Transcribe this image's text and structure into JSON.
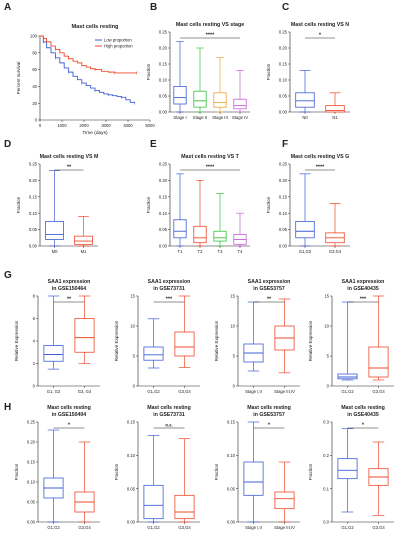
{
  "colors": {
    "blue": "#3f5fd6",
    "red": "#ef4a2c",
    "green": "#36c23a",
    "orange": "#f4a23a",
    "purple": "#c85fd8",
    "axis": "#222222"
  },
  "chart_data": [
    {
      "id": "A",
      "type": "line",
      "panel_label": "A",
      "title": "Mast cells resting",
      "xlabel": "Time (days)",
      "ylabel": "Percent survival",
      "xlim": [
        0,
        5000
      ],
      "ylim": [
        0,
        100
      ],
      "xticks": [
        "0",
        "1000",
        "2000",
        "3000",
        "4000",
        "5000"
      ],
      "yticks": [
        "0",
        "20",
        "40",
        "60",
        "80",
        "100"
      ],
      "legend_position": "top-right",
      "series": [
        {
          "name": "Low proportion",
          "color": "#3f5fd6",
          "x": [
            0,
            150,
            300,
            500,
            700,
            900,
            1100,
            1300,
            1500,
            1700,
            1900,
            2100,
            2300,
            2500,
            2700,
            2900,
            3100,
            3300,
            3500,
            3700,
            3900,
            4100,
            4300
          ],
          "y": [
            100,
            93,
            86,
            80,
            74,
            68,
            62,
            57,
            52,
            48,
            44,
            41,
            38,
            35,
            33,
            31,
            30,
            29,
            28,
            27,
            24,
            21,
            20
          ]
        },
        {
          "name": "High proportion",
          "color": "#ef4a2c",
          "x": [
            0,
            150,
            300,
            500,
            700,
            900,
            1100,
            1300,
            1500,
            1700,
            1900,
            2100,
            2300,
            2500,
            2800,
            3100,
            3400,
            3700,
            4000,
            4400
          ],
          "y": [
            100,
            97,
            93,
            88,
            84,
            80,
            76,
            73,
            70,
            68,
            65,
            63,
            61,
            60,
            58,
            57,
            56,
            56,
            56,
            56
          ]
        }
      ]
    },
    {
      "id": "B",
      "type": "box",
      "panel_label": "B",
      "title": "Mast cells resting VS stage",
      "ylabel": "Fraction",
      "ylim": [
        0,
        0.25
      ],
      "yticks": [
        "0.00",
        "0.05",
        "0.10",
        "0.15",
        "0.20",
        "0.25"
      ],
      "categories": [
        "Stage I",
        "Stage II",
        "Stage III",
        "Stage IV"
      ],
      "colors": [
        "#3f5fd6",
        "#36c23a",
        "#f4a23a",
        "#c85fd8"
      ],
      "boxes": [
        [
          0,
          0.025,
          0.045,
          0.08,
          0.22
        ],
        [
          0,
          0.015,
          0.035,
          0.065,
          0.2
        ],
        [
          0,
          0.015,
          0.03,
          0.06,
          0.17
        ],
        [
          0,
          0.01,
          0.02,
          0.04,
          0.13
        ]
      ],
      "significance": [
        {
          "from": 0,
          "to": 3,
          "label": "****"
        }
      ]
    },
    {
      "id": "C",
      "type": "box",
      "panel_label": "C",
      "title": "Mast cells resting VS N",
      "ylabel": "Fraction",
      "ylim": [
        0,
        0.25
      ],
      "yticks": [
        "0.00",
        "0.05",
        "0.10",
        "0.15",
        "0.20",
        "0.25"
      ],
      "categories": [
        "N0",
        "N1"
      ],
      "colors": [
        "#3f5fd6",
        "#ef4a2c"
      ],
      "boxes": [
        [
          0,
          0.015,
          0.035,
          0.06,
          0.13
        ],
        [
          0,
          0,
          0.005,
          0.02,
          0.06
        ]
      ],
      "significance": [
        {
          "from": 0,
          "to": 1,
          "label": "*"
        }
      ]
    },
    {
      "id": "D",
      "type": "box",
      "panel_label": "D",
      "title": "Mast cells resting VS M",
      "ylabel": "Fraction",
      "ylim": [
        0,
        0.25
      ],
      "yticks": [
        "0.00",
        "0.05",
        "0.10",
        "0.15",
        "0.20",
        "0.25"
      ],
      "categories": [
        "M0",
        "M1"
      ],
      "colors": [
        "#3f5fd6",
        "#ef4a2c"
      ],
      "boxes": [
        [
          0,
          0.02,
          0.035,
          0.075,
          0.23
        ],
        [
          0,
          0.005,
          0.015,
          0.03,
          0.09
        ]
      ],
      "significance": [
        {
          "from": 0,
          "to": 1,
          "label": "**"
        }
      ]
    },
    {
      "id": "E",
      "type": "box",
      "panel_label": "E",
      "title": "Mast cells resting VS T",
      "ylabel": "Fraction",
      "ylim": [
        0,
        0.25
      ],
      "yticks": [
        "0.00",
        "0.05",
        "0.10",
        "0.15",
        "0.20",
        "0.25"
      ],
      "categories": [
        "T1",
        "T2",
        "T3",
        "T4"
      ],
      "colors": [
        "#3f5fd6",
        "#ef4a2c",
        "#36c23a",
        "#c85fd8"
      ],
      "boxes": [
        [
          0,
          0.025,
          0.045,
          0.08,
          0.22
        ],
        [
          0,
          0.01,
          0.025,
          0.06,
          0.2
        ],
        [
          0,
          0.015,
          0.025,
          0.045,
          0.16
        ],
        [
          0,
          0.005,
          0.02,
          0.035,
          0.1
        ]
      ],
      "significance": [
        {
          "from": 0,
          "to": 3,
          "label": "****"
        }
      ]
    },
    {
      "id": "F",
      "type": "box",
      "panel_label": "F",
      "title": "Mast cells resting VS G",
      "ylabel": "Fraction",
      "ylim": [
        0,
        0.25
      ],
      "yticks": [
        "0.00",
        "0.05",
        "0.10",
        "0.15",
        "0.20",
        "0.25"
      ],
      "categories": [
        "G1,G2",
        "G3,G4"
      ],
      "colors": [
        "#3f5fd6",
        "#ef4a2c"
      ],
      "boxes": [
        [
          0,
          0.025,
          0.045,
          0.075,
          0.22
        ],
        [
          0,
          0.01,
          0.025,
          0.04,
          0.13
        ]
      ],
      "significance": [
        {
          "from": 0,
          "to": 1,
          "label": "****"
        }
      ]
    },
    {
      "id": "G1",
      "type": "box",
      "panel_label": "G",
      "title": [
        "SAA1 expression",
        "in GSE150464"
      ],
      "ylabel": "Relative Expression",
      "ylim": [
        0,
        8
      ],
      "yticks": [
        "0",
        "2",
        "4",
        "6",
        "8"
      ],
      "categories": [
        "G1, G2",
        "G3, G4"
      ],
      "colors": [
        "#3f5fd6",
        "#ef4a2c"
      ],
      "boxes": [
        [
          1.5,
          2.2,
          2.8,
          3.6,
          8.0
        ],
        [
          2.0,
          3.0,
          4.3,
          6.0,
          8.0
        ]
      ],
      "significance": [
        {
          "from": 0,
          "to": 1,
          "label": "**"
        }
      ]
    },
    {
      "id": "G2",
      "type": "box",
      "panel_label": "",
      "title": [
        "SAA1 expression",
        "in GSE73731"
      ],
      "ylabel": "Relative Expression",
      "ylim": [
        0,
        15
      ],
      "yticks": [
        "0",
        "5",
        "10",
        "15"
      ],
      "categories": [
        "G1,G2",
        "G3,G4"
      ],
      "colors": [
        "#3f5fd6",
        "#ef4a2c"
      ],
      "boxes": [
        [
          3.0,
          4.3,
          5.2,
          6.5,
          11.2
        ],
        [
          3.1,
          5.0,
          6.5,
          9.0,
          15.0
        ]
      ],
      "significance": [
        {
          "from": 0,
          "to": 1,
          "label": "***"
        }
      ]
    },
    {
      "id": "G3",
      "type": "box",
      "panel_label": "",
      "title": [
        "SAA1 expression",
        "in GSE53757"
      ],
      "ylabel": "Relative Expression",
      "ylim": [
        0,
        15
      ],
      "yticks": [
        "0",
        "5",
        "10",
        "15"
      ],
      "categories": [
        "Stage I,II",
        "Stage III,IV"
      ],
      "colors": [
        "#3f5fd6",
        "#ef4a2c"
      ],
      "boxes": [
        [
          2.5,
          4.0,
          5.5,
          7.0,
          14.0
        ],
        [
          2.2,
          6.0,
          8.0,
          10.0,
          14.5
        ]
      ],
      "significance": [
        {
          "from": 0,
          "to": 1,
          "label": "**"
        }
      ]
    },
    {
      "id": "G4",
      "type": "box",
      "panel_label": "",
      "title": [
        "SAA1 expression",
        "in GSE40435"
      ],
      "ylabel": "Relative Expression",
      "ylim": [
        0,
        15
      ],
      "yticks": [
        "0",
        "5",
        "10",
        "15"
      ],
      "categories": [
        "G1,G2",
        "G3,G4"
      ],
      "colors": [
        "#3f5fd6",
        "#ef4a2c"
      ],
      "boxes": [
        [
          1.0,
          1.2,
          1.5,
          2.0,
          14.0
        ],
        [
          1.0,
          1.5,
          3.0,
          6.5,
          15.0
        ]
      ],
      "significance": [
        {
          "from": 0,
          "to": 1,
          "label": "***"
        }
      ]
    },
    {
      "id": "H1",
      "type": "box",
      "panel_label": "H",
      "title": [
        "Mast cells resting",
        "in GSE150404"
      ],
      "ylabel": "Fraction",
      "ylim": [
        0,
        0.25
      ],
      "yticks": [
        "0.00",
        "0.05",
        "0.10",
        "0.15",
        "0.20",
        "0.25"
      ],
      "categories": [
        "G1,G2",
        "G3,G4"
      ],
      "colors": [
        "#3f5fd6",
        "#ef4a2c"
      ],
      "boxes": [
        [
          0,
          0.06,
          0.085,
          0.11,
          0.23
        ],
        [
          0,
          0.025,
          0.05,
          0.075,
          0.2
        ]
      ],
      "significance": [
        {
          "from": 0,
          "to": 1,
          "label": "*"
        }
      ]
    },
    {
      "id": "H2",
      "type": "box",
      "panel_label": "",
      "title": [
        "Mast cells resting",
        "in GSE73731"
      ],
      "ylabel": "Fraction",
      "ylim": [
        0,
        0.15
      ],
      "yticks": [
        "0.00",
        "0.05",
        "0.10",
        "0.15"
      ],
      "categories": [
        "G1,G2",
        "G3,G4"
      ],
      "colors": [
        "#3f5fd6",
        "#ef4a2c"
      ],
      "boxes": [
        [
          0,
          0.005,
          0.025,
          0.055,
          0.13
        ],
        [
          0,
          0.005,
          0.015,
          0.04,
          0.125
        ]
      ],
      "significance": [
        {
          "from": 0,
          "to": 1,
          "label": "n.s."
        }
      ]
    },
    {
      "id": "H3",
      "type": "box",
      "panel_label": "",
      "title": [
        "Mast cells resting",
        "in GSE53757"
      ],
      "ylabel": "Fraction",
      "ylim": [
        0,
        0.15
      ],
      "yticks": [
        "0.00",
        "0.05",
        "0.10",
        "0.15"
      ],
      "categories": [
        "Stage I,II",
        "Stage III,IV"
      ],
      "colors": [
        "#3f5fd6",
        "#ef4a2c"
      ],
      "boxes": [
        [
          0,
          0.04,
          0.06,
          0.09,
          0.15
        ],
        [
          0,
          0.02,
          0.035,
          0.045,
          0.09
        ]
      ],
      "significance": [
        {
          "from": 0,
          "to": 1,
          "label": "*"
        }
      ]
    },
    {
      "id": "H4",
      "type": "box",
      "panel_label": "",
      "title": [
        "Mast cells resting",
        "in GSE40435"
      ],
      "ylabel": "Fraction",
      "ylim": [
        0,
        0.3
      ],
      "yticks": [
        "0.0",
        "0.1",
        "0.2",
        "0.3"
      ],
      "categories": [
        "G1,G2",
        "G3,G4"
      ],
      "colors": [
        "#3f5fd6",
        "#ef4a2c"
      ],
      "boxes": [
        [
          0.03,
          0.13,
          0.155,
          0.19,
          0.28
        ],
        [
          0.02,
          0.11,
          0.135,
          0.16,
          0.24
        ]
      ],
      "significance": [
        {
          "from": 0,
          "to": 1,
          "label": "*"
        }
      ]
    }
  ]
}
